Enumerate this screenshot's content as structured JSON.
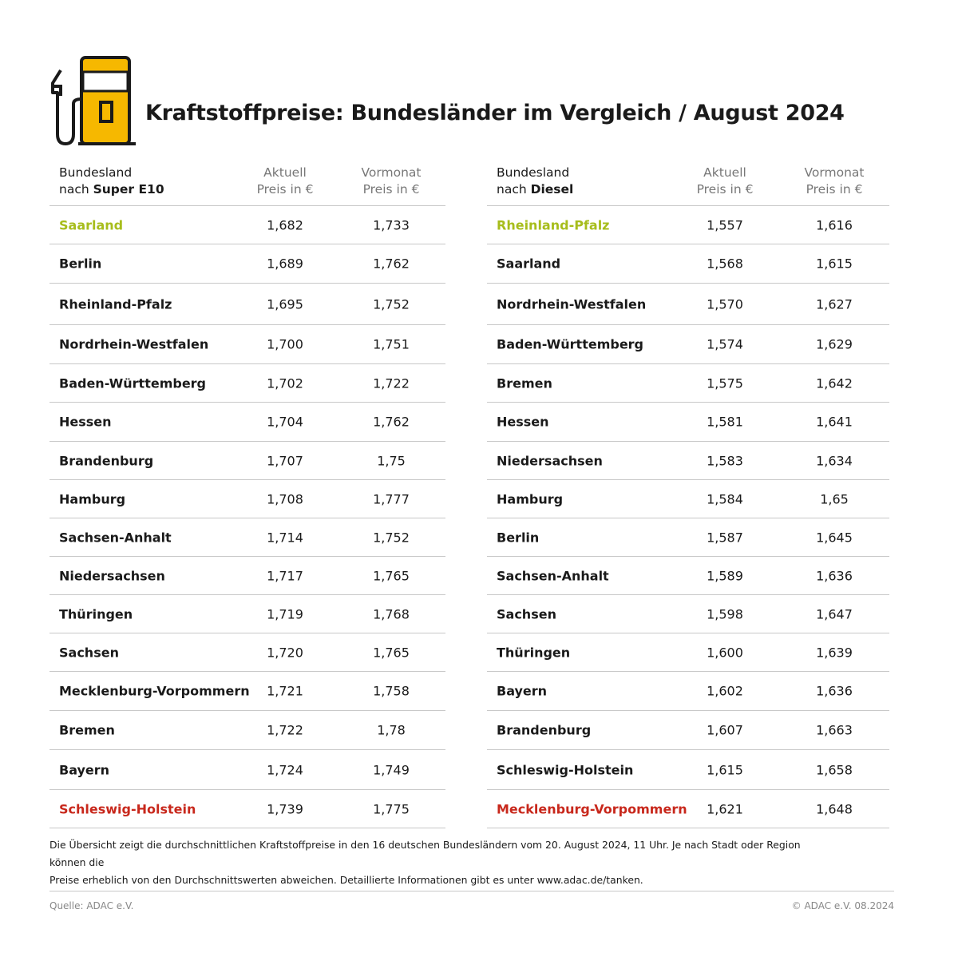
{
  "title": "Kraftstoffpreise: Bundesländer im Vergleich / August 2024",
  "colors": {
    "accent_yellow": "#f6b800",
    "best": "#a7bd1c",
    "worst": "#c8281c"
  },
  "icon": "fuel-pump-icon",
  "super_e10": {
    "header": {
      "line1": "Bundesland",
      "line2_prefix": "nach ",
      "fuel": "Super E10",
      "col1_line1": "Aktuell",
      "col1_line2": "Preis in €",
      "col2_line1": "Vormonat",
      "col2_line2": "Preis in €"
    },
    "rows": [
      {
        "state": "Saarland",
        "current": "1,682",
        "previous": "1,733"
      },
      {
        "state": "Berlin",
        "current": "1,689",
        "previous": "1,762"
      },
      {
        "state": "Rheinland-Pfalz",
        "current": "1,695",
        "previous": "1,752"
      },
      {
        "state": "Nordrhein-Westfalen",
        "current": "1,700",
        "previous": "1,751"
      },
      {
        "state": "Baden-Württemberg",
        "current": "1,702",
        "previous": "1,722"
      },
      {
        "state": "Hessen",
        "current": "1,704",
        "previous": "1,762"
      },
      {
        "state": "Brandenburg",
        "current": "1,707",
        "previous": "1,75"
      },
      {
        "state": "Hamburg",
        "current": "1,708",
        "previous": "1,777"
      },
      {
        "state": "Sachsen-Anhalt",
        "current": "1,714",
        "previous": "1,752"
      },
      {
        "state": "Niedersachsen",
        "current": "1,717",
        "previous": "1,765"
      },
      {
        "state": "Thüringen",
        "current": "1,719",
        "previous": "1,768"
      },
      {
        "state": "Sachsen",
        "current": "1,720",
        "previous": "1,765"
      },
      {
        "state": "Mecklenburg-Vorpommern",
        "current": "1,721",
        "previous": "1,758"
      },
      {
        "state": "Bremen",
        "current": "1,722",
        "previous": "1,78"
      },
      {
        "state": "Bayern",
        "current": "1,724",
        "previous": "1,749"
      },
      {
        "state": "Schleswig-Holstein",
        "current": "1,739",
        "previous": "1,775"
      }
    ]
  },
  "diesel": {
    "header": {
      "line1": "Bundesland",
      "line2_prefix": "nach ",
      "fuel": "Diesel",
      "col1_line1": "Aktuell",
      "col1_line2": "Preis in €",
      "col2_line1": "Vormonat",
      "col2_line2": "Preis in €"
    },
    "rows": [
      {
        "state": "Rheinland-Pfalz",
        "current": "1,557",
        "previous": "1,616"
      },
      {
        "state": "Saarland",
        "current": "1,568",
        "previous": "1,615"
      },
      {
        "state": "Nordrhein-Westfalen",
        "current": "1,570",
        "previous": "1,627"
      },
      {
        "state": "Baden-Württemberg",
        "current": "1,574",
        "previous": "1,629"
      },
      {
        "state": "Bremen",
        "current": "1,575",
        "previous": "1,642"
      },
      {
        "state": "Hessen",
        "current": "1,581",
        "previous": "1,641"
      },
      {
        "state": "Niedersachsen",
        "current": "1,583",
        "previous": "1,634"
      },
      {
        "state": "Hamburg",
        "current": "1,584",
        "previous": "1,65"
      },
      {
        "state": "Berlin",
        "current": "1,587",
        "previous": "1,645"
      },
      {
        "state": "Sachsen-Anhalt",
        "current": "1,589",
        "previous": "1,636"
      },
      {
        "state": "Sachsen",
        "current": "1,598",
        "previous": "1,647"
      },
      {
        "state": "Thüringen",
        "current": "1,600",
        "previous": "1,639"
      },
      {
        "state": "Bayern",
        "current": "1,602",
        "previous": "1,636"
      },
      {
        "state": "Brandenburg",
        "current": "1,607",
        "previous": "1,663"
      },
      {
        "state": "Schleswig-Holstein",
        "current": "1,615",
        "previous": "1,658"
      },
      {
        "state": "Mecklenburg-Vorpommern",
        "current": "1,621",
        "previous": "1,648"
      }
    ]
  },
  "footnote": {
    "line1": "Die Übersicht zeigt die durchschnittlichen Kraftstoffpreise in den 16 deutschen Bundesländern vom 20. August 2024, 11 Uhr. Je nach Stadt oder Region können die",
    "line2": "Preise erheblich von den Durchschnittswerten abweichen. Detaillierte Informationen gibt es unter www.adac.de/tanken."
  },
  "source": "Quelle: ADAC e.V.",
  "copyright": "© ADAC e.V. 08.2024"
}
